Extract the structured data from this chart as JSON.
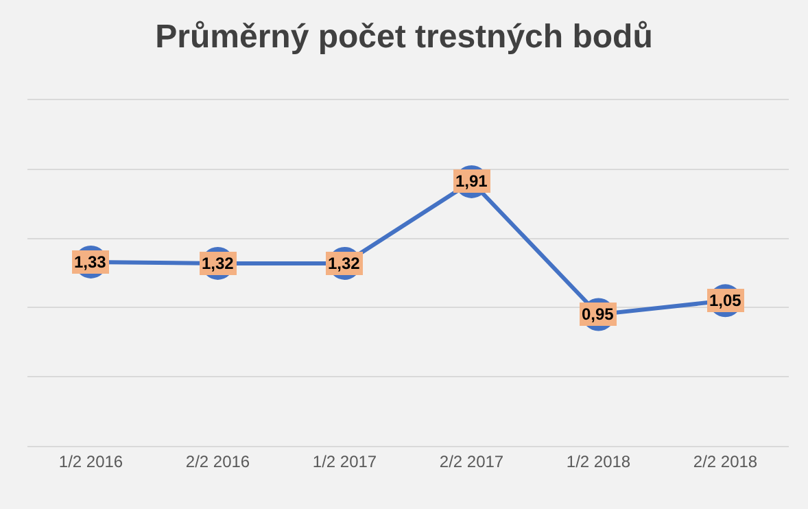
{
  "chart_data": {
    "type": "line",
    "title": "Průměrný počet trestných bodů",
    "categories": [
      "1/2 2016",
      "2/2 2016",
      "1/2 2017",
      "2/2 2017",
      "1/2 2018",
      "2/2 2018"
    ],
    "series": [
      {
        "color": "#4472c4",
        "values": [
          1.33,
          1.32,
          1.32,
          1.91,
          0.95,
          1.05
        ],
        "value_labels": [
          "1,33",
          "1,32",
          "1,32",
          "1,91",
          "0,95",
          "1,05"
        ]
      }
    ],
    "ylim": [
      0,
      2.5
    ],
    "yticks": [
      {
        "value": 0,
        "label": null
      },
      {
        "value": 0.5,
        "label": null
      },
      {
        "value": 1,
        "label": null
      },
      {
        "value": 1.5,
        "label": null
      },
      {
        "value": 2,
        "label": null
      },
      {
        "value": 2.5,
        "label": null
      }
    ],
    "tick_labels": "x",
    "grid": "y",
    "marker": "circle",
    "line_style": "solid",
    "legend": false
  }
}
